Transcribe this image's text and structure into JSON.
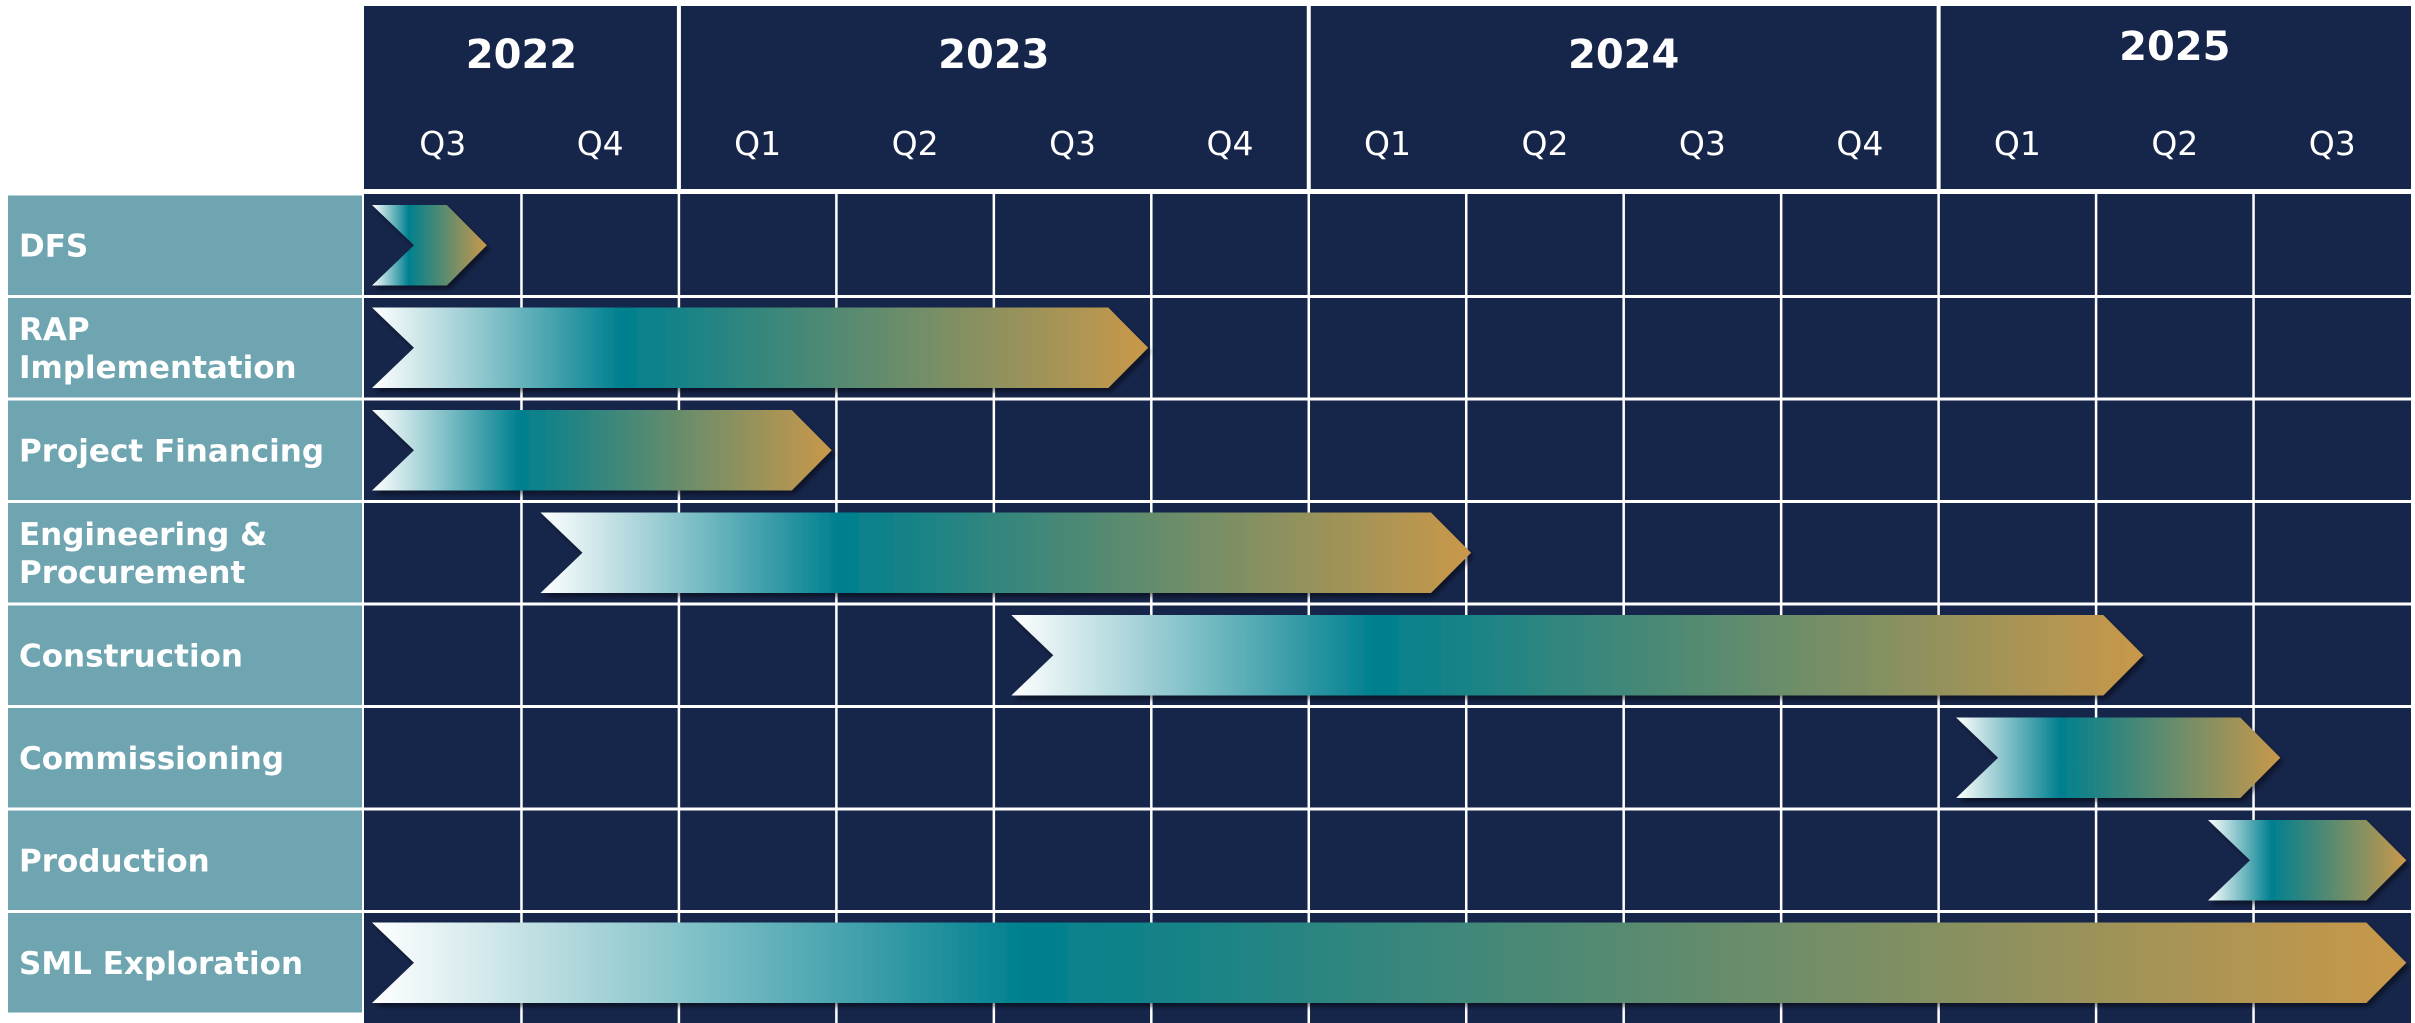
{
  "chart_data": {
    "type": "gantt",
    "title": "",
    "colors": {
      "header_bg": "#16254a",
      "grid_bg": "#16254a",
      "grid_line": "#ffffff",
      "task_label_bg": "#6fa5b0",
      "bar_gradient_start": "#ffffff",
      "bar_gradient_mid": "#00808f",
      "bar_gradient_end": "#c9984a"
    },
    "years": [
      {
        "label": "2022",
        "quarters": [
          "Q3",
          "Q4"
        ]
      },
      {
        "label": "2023",
        "quarters": [
          "Q1",
          "Q2",
          "Q3",
          "Q4"
        ]
      },
      {
        "label": "2024",
        "quarters": [
          "Q1",
          "Q2",
          "Q3",
          "Q4"
        ]
      },
      {
        "label": "2025",
        "quarters": [
          "Q1",
          "Q2",
          "Q3"
        ]
      }
    ],
    "tasks": [
      {
        "name": [
          "DFS"
        ],
        "start": "Q3 2022",
        "end": "Q3 2022"
      },
      {
        "name": [
          "RAP",
          "Implementation"
        ],
        "start": "Q3 2022",
        "end": "Q3 2023"
      },
      {
        "name": [
          "Project Financing"
        ],
        "start": "Q3 2022",
        "end": "Q1 2023"
      },
      {
        "name": [
          "Engineering &",
          "Procurement"
        ],
        "start": "Q4 2022",
        "end": "Q1 2024"
      },
      {
        "name": [
          "Construction"
        ],
        "start": "Q3 2023",
        "end": "Q1 2025"
      },
      {
        "name": [
          "Commissioning"
        ],
        "start": "Q1 2025",
        "end": "Q2 2025"
      },
      {
        "name": [
          "Production"
        ],
        "start": "Q2 2025",
        "end": "Q3 2025"
      },
      {
        "name": [
          "SML Exploration"
        ],
        "start": "Q3 2022",
        "end": "Q3 2025"
      }
    ],
    "bars": [
      {
        "start_q": 0,
        "end_q": 0.78
      },
      {
        "start_q": 0,
        "end_q": 4.98
      },
      {
        "start_q": 0,
        "end_q": 2.97
      },
      {
        "start_q": 1.07,
        "end_q": 7.03
      },
      {
        "start_q": 4.06,
        "end_q": 11.3
      },
      {
        "start_q": 10.06,
        "end_q": 12.17
      },
      {
        "start_q": 11.66,
        "end_q": 12.97
      },
      {
        "start_q": 0,
        "end_q": 12.97
      }
    ]
  }
}
